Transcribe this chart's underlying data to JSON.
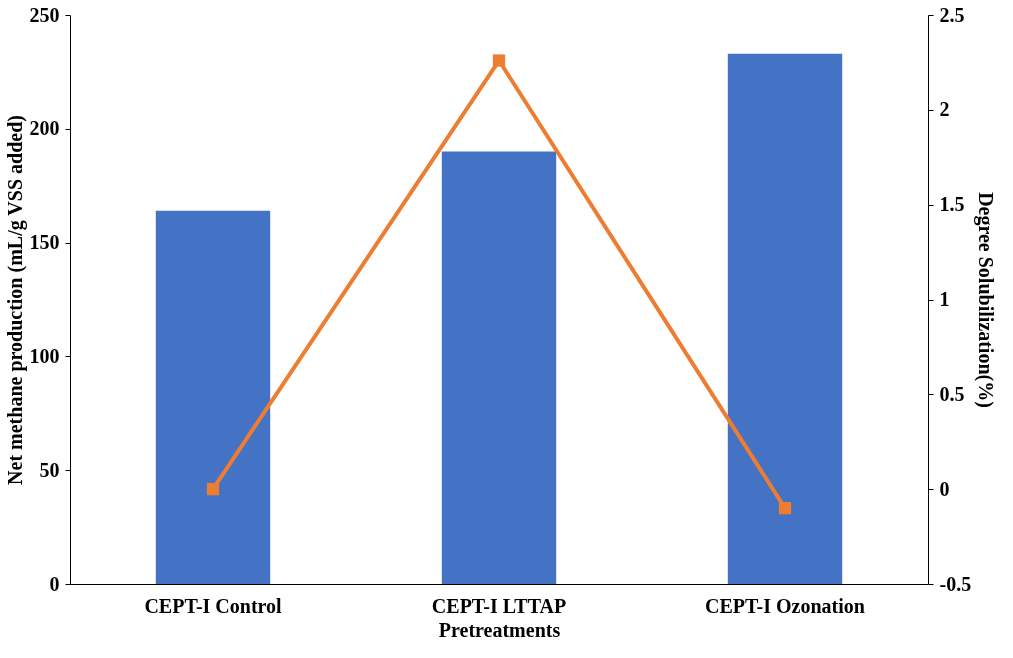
{
  "chart_data": {
    "type": "bar",
    "categories": [
      "CEPT-I Control",
      "CEPT-I LTTAP",
      "CEPT-I Ozonation"
    ],
    "series": [
      {
        "color": "#4472c4",
        "values": [
          164,
          190,
          233
        ]
      },
      {
        "type": "line",
        "axis": "y2",
        "color": "#ed7d31",
        "values": [
          0,
          2.26,
          -0.1
        ],
        "marker": "square",
        "line_style": "solid"
      }
    ],
    "xlabel": "Pretreatments",
    "ylabel": "Net methane production (mL/g VSS added)",
    "y2label": "Degree Solubilization(%)",
    "ylim": [
      0,
      250
    ],
    "yticks": [
      0,
      50,
      100,
      150,
      200,
      250
    ],
    "y2lim": [
      -0.5,
      2.5
    ],
    "y2ticks": [
      -0.5,
      0,
      0.5,
      1,
      1.5,
      2,
      2.5
    ]
  }
}
